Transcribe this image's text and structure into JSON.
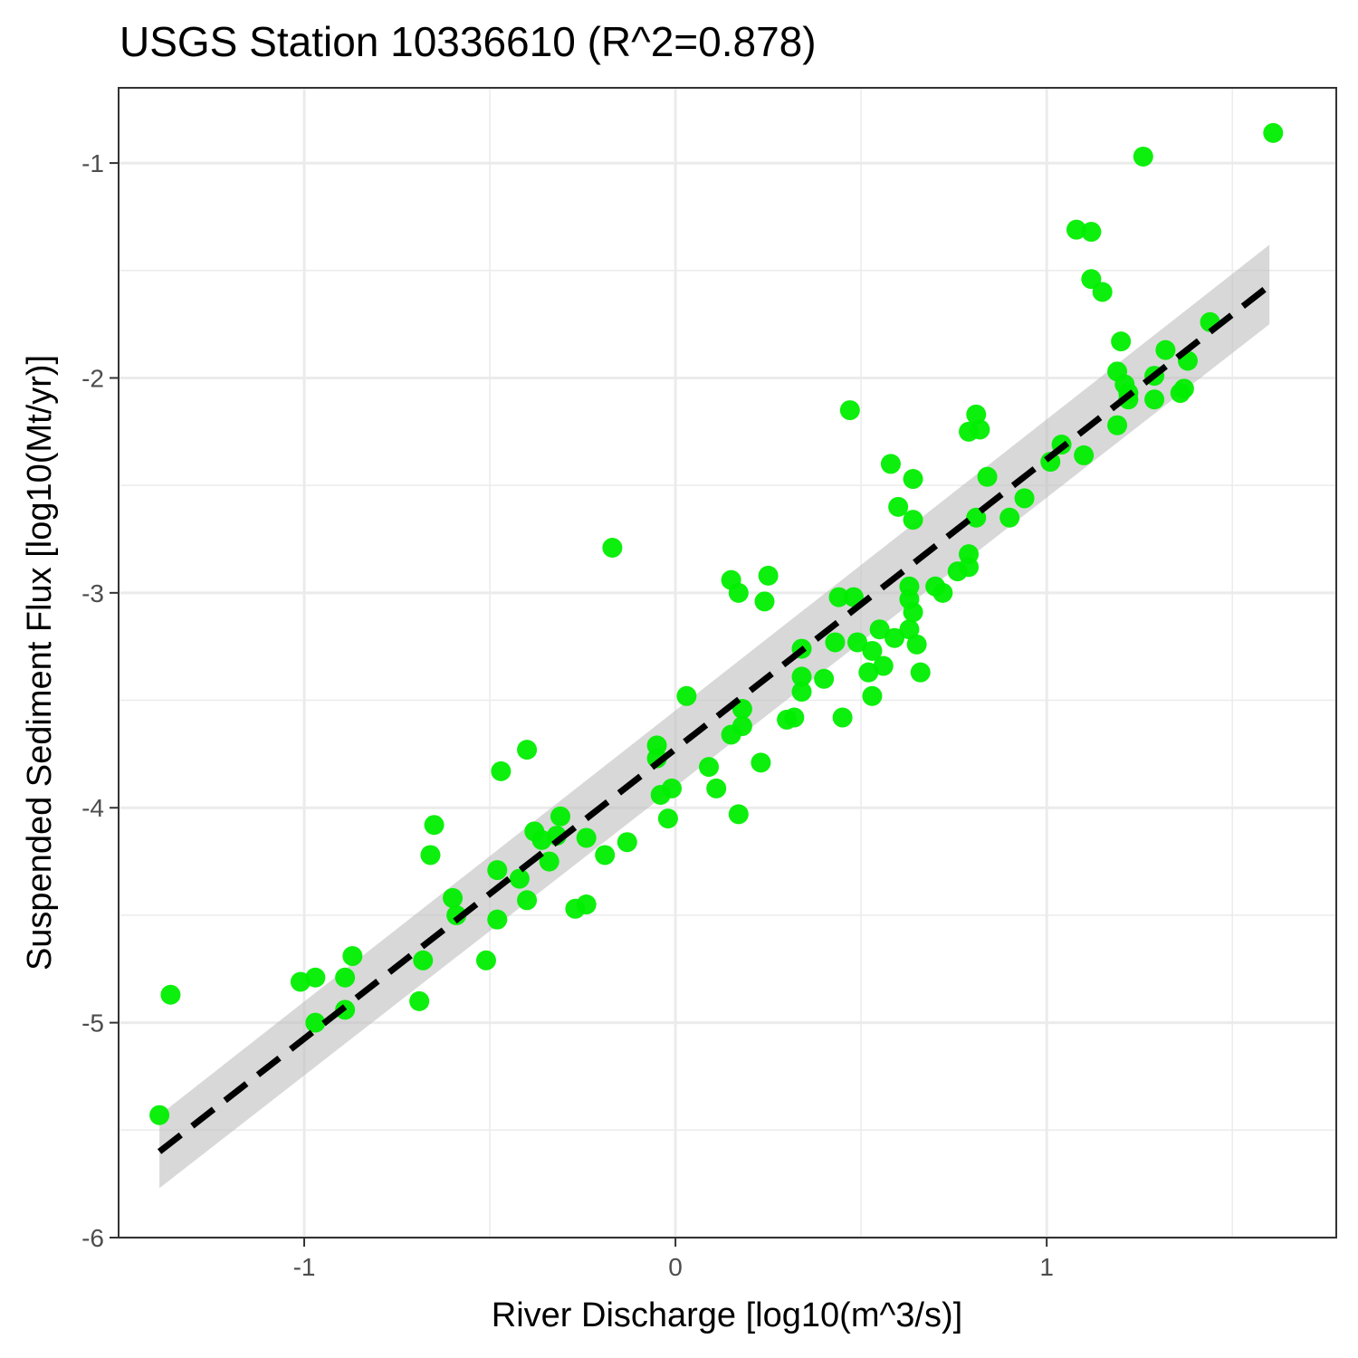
{
  "chart_data": {
    "type": "scatter",
    "title": "USGS Station 10336610 (R^2=0.878)",
    "xlabel": "River Discharge [log10(m^3/s)]",
    "ylabel": "Suspended Sediment Flux [log10(Mt/yr)]",
    "xlim": [
      -1.5,
      1.78
    ],
    "ylim": [
      -6.0,
      -0.65
    ],
    "xticks": [
      -1,
      0,
      1
    ],
    "yticks": [
      -6,
      -5,
      -4,
      -3,
      -2,
      -1
    ],
    "xtick_labels": [
      "-1",
      "0",
      "1"
    ],
    "ytick_labels": [
      "-6",
      "-5",
      "-4",
      "-3",
      "-2",
      "-1"
    ],
    "grid": true,
    "point_color": "#00ee00",
    "fit_line": {
      "style": "dashed",
      "color": "#000000",
      "x": [
        -1.39,
        1.6
      ],
      "y": [
        -5.6,
        -1.57
      ]
    },
    "confidence_band": {
      "color": "#bebebe",
      "x": [
        -1.39,
        1.6
      ],
      "lower": [
        -5.77,
        -1.75
      ],
      "upper": [
        -5.43,
        -1.38
      ]
    },
    "points": [
      [
        -1.39,
        -5.43
      ],
      [
        -1.36,
        -4.87
      ],
      [
        -1.01,
        -4.81
      ],
      [
        -0.97,
        -4.79
      ],
      [
        -0.97,
        -5.0
      ],
      [
        -0.89,
        -4.94
      ],
      [
        -0.89,
        -4.79
      ],
      [
        -0.87,
        -4.69
      ],
      [
        -0.69,
        -4.9
      ],
      [
        -0.68,
        -4.71
      ],
      [
        -0.66,
        -4.22
      ],
      [
        -0.65,
        -4.08
      ],
      [
        -0.6,
        -4.42
      ],
      [
        -0.59,
        -4.5
      ],
      [
        -0.51,
        -4.71
      ],
      [
        -0.48,
        -4.52
      ],
      [
        -0.48,
        -4.29
      ],
      [
        -0.47,
        -3.83
      ],
      [
        -0.42,
        -4.33
      ],
      [
        -0.4,
        -4.43
      ],
      [
        -0.4,
        -3.73
      ],
      [
        -0.38,
        -4.11
      ],
      [
        -0.36,
        -4.15
      ],
      [
        -0.34,
        -4.25
      ],
      [
        -0.32,
        -4.13
      ],
      [
        -0.31,
        -4.04
      ],
      [
        -0.27,
        -4.47
      ],
      [
        -0.24,
        -4.45
      ],
      [
        -0.24,
        -4.14
      ],
      [
        -0.19,
        -4.22
      ],
      [
        -0.17,
        -2.79
      ],
      [
        -0.13,
        -4.16
      ],
      [
        -0.05,
        -3.71
      ],
      [
        -0.05,
        -3.77
      ],
      [
        -0.04,
        -3.94
      ],
      [
        -0.02,
        -4.05
      ],
      [
        -0.01,
        -3.91
      ],
      [
        0.03,
        -3.48
      ],
      [
        0.09,
        -3.81
      ],
      [
        0.11,
        -3.91
      ],
      [
        0.15,
        -3.66
      ],
      [
        0.15,
        -2.94
      ],
      [
        0.17,
        -3.0
      ],
      [
        0.17,
        -4.03
      ],
      [
        0.18,
        -3.62
      ],
      [
        0.18,
        -3.54
      ],
      [
        0.23,
        -3.79
      ],
      [
        0.24,
        -3.04
      ],
      [
        0.25,
        -2.92
      ],
      [
        0.3,
        -3.59
      ],
      [
        0.32,
        -3.58
      ],
      [
        0.34,
        -3.26
      ],
      [
        0.34,
        -3.39
      ],
      [
        0.34,
        -3.46
      ],
      [
        0.4,
        -3.4
      ],
      [
        0.43,
        -3.23
      ],
      [
        0.44,
        -3.02
      ],
      [
        0.45,
        -3.58
      ],
      [
        0.47,
        -2.15
      ],
      [
        0.48,
        -3.02
      ],
      [
        0.49,
        -3.23
      ],
      [
        0.52,
        -3.37
      ],
      [
        0.53,
        -3.48
      ],
      [
        0.53,
        -3.27
      ],
      [
        0.55,
        -3.17
      ],
      [
        0.56,
        -3.34
      ],
      [
        0.58,
        -2.4
      ],
      [
        0.59,
        -3.21
      ],
      [
        0.6,
        -2.6
      ],
      [
        0.63,
        -3.03
      ],
      [
        0.63,
        -2.97
      ],
      [
        0.63,
        -3.17
      ],
      [
        0.64,
        -2.66
      ],
      [
        0.64,
        -2.47
      ],
      [
        0.64,
        -3.09
      ],
      [
        0.65,
        -3.24
      ],
      [
        0.66,
        -3.37
      ],
      [
        0.7,
        -2.97
      ],
      [
        0.72,
        -3.0
      ],
      [
        0.76,
        -2.9
      ],
      [
        0.79,
        -2.82
      ],
      [
        0.79,
        -2.88
      ],
      [
        0.79,
        -2.25
      ],
      [
        0.81,
        -2.17
      ],
      [
        0.81,
        -2.65
      ],
      [
        0.82,
        -2.24
      ],
      [
        0.84,
        -2.46
      ],
      [
        0.9,
        -2.65
      ],
      [
        0.94,
        -2.56
      ],
      [
        1.01,
        -2.39
      ],
      [
        1.04,
        -2.31
      ],
      [
        1.08,
        -1.31
      ],
      [
        1.1,
        -2.36
      ],
      [
        1.12,
        -1.32
      ],
      [
        1.12,
        -1.54
      ],
      [
        1.15,
        -1.6
      ],
      [
        1.19,
        -1.97
      ],
      [
        1.19,
        -2.22
      ],
      [
        1.2,
        -1.83
      ],
      [
        1.21,
        -2.03
      ],
      [
        1.22,
        -2.1
      ],
      [
        1.22,
        -2.07
      ],
      [
        1.26,
        -0.97
      ],
      [
        1.29,
        -1.99
      ],
      [
        1.29,
        -2.1
      ],
      [
        1.32,
        -1.87
      ],
      [
        1.36,
        -2.07
      ],
      [
        1.37,
        -2.05
      ],
      [
        1.38,
        -1.92
      ],
      [
        1.44,
        -1.74
      ],
      [
        1.61,
        -0.86
      ]
    ]
  }
}
